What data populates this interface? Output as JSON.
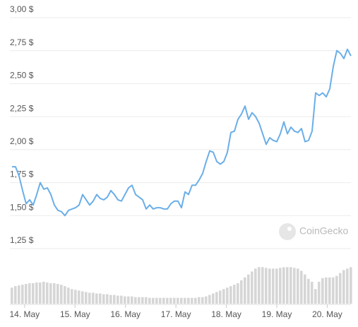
{
  "chart_data": {
    "type": "line",
    "color": "#6aaee8",
    "x": [
      13.75,
      13.82,
      13.89,
      13.96,
      14.03,
      14.1,
      14.17,
      14.24,
      14.31,
      14.38,
      14.45,
      14.52,
      14.59,
      14.66,
      14.73,
      14.8,
      14.87,
      14.94,
      15.01,
      15.08,
      15.15,
      15.22,
      15.29,
      15.36,
      15.43,
      15.5,
      15.57,
      15.64,
      15.71,
      15.78,
      15.85,
      15.92,
      15.99,
      16.06,
      16.13,
      16.2,
      16.27,
      16.34,
      16.41,
      16.48,
      16.55,
      16.62,
      16.69,
      16.76,
      16.83,
      16.9,
      16.97,
      17.04,
      17.11,
      17.18,
      17.25,
      17.32,
      17.39,
      17.46,
      17.53,
      17.6,
      17.67,
      17.74,
      17.81,
      17.88,
      17.95,
      18.02,
      18.09,
      18.16,
      18.23,
      18.3,
      18.37,
      18.44,
      18.51,
      18.58,
      18.65,
      18.72,
      18.79,
      18.86,
      18.93,
      19.0,
      19.07,
      19.14,
      19.21,
      19.28,
      19.35,
      19.42,
      19.49,
      19.56,
      19.63,
      19.7,
      19.77,
      19.84,
      19.91,
      19.98,
      20.05,
      20.12,
      20.19,
      20.26,
      20.33,
      20.4,
      20.47
    ],
    "values": [
      1.87,
      1.87,
      1.8,
      1.69,
      1.59,
      1.62,
      1.58,
      1.66,
      1.75,
      1.7,
      1.71,
      1.66,
      1.58,
      1.54,
      1.53,
      1.5,
      1.54,
      1.55,
      1.56,
      1.58,
      1.66,
      1.62,
      1.58,
      1.61,
      1.66,
      1.63,
      1.62,
      1.64,
      1.69,
      1.66,
      1.62,
      1.61,
      1.66,
      1.71,
      1.73,
      1.66,
      1.64,
      1.62,
      1.55,
      1.58,
      1.55,
      1.56,
      1.56,
      1.55,
      1.55,
      1.59,
      1.61,
      1.61,
      1.56,
      1.68,
      1.66,
      1.73,
      1.73,
      1.77,
      1.82,
      1.91,
      1.99,
      1.98,
      1.91,
      1.89,
      1.91,
      1.98,
      2.13,
      2.14,
      2.23,
      2.27,
      2.33,
      2.23,
      2.28,
      2.25,
      2.2,
      2.12,
      2.04,
      2.09,
      2.07,
      2.06,
      2.12,
      2.21,
      2.12,
      2.17,
      2.14,
      2.13,
      2.16,
      2.06,
      2.07,
      2.14,
      2.43,
      2.41,
      2.43,
      2.4,
      2.46,
      2.63,
      2.75,
      2.73,
      2.69,
      2.76,
      2.71
    ],
    "volume": {
      "color": "#d6d6d6",
      "ylim": [
        0,
        58
      ],
      "values": [
        22,
        24,
        25,
        26,
        27,
        28,
        28,
        29,
        29,
        30,
        29,
        28,
        28,
        27,
        26,
        24,
        22,
        20,
        19,
        18,
        17,
        16,
        15,
        15,
        14,
        14,
        13,
        13,
        12,
        12,
        11,
        11,
        10,
        10,
        10,
        9,
        9,
        9,
        9,
        8,
        8,
        8,
        8,
        8,
        8,
        8,
        8,
        8,
        8,
        8,
        8,
        8,
        8,
        9,
        9,
        10,
        12,
        14,
        16,
        18,
        20,
        22,
        24,
        26,
        28,
        32,
        36,
        40,
        44,
        48,
        50,
        50,
        49,
        48,
        48,
        48,
        49,
        50,
        50,
        50,
        49,
        48,
        45,
        40,
        34,
        30,
        20,
        30,
        35,
        36,
        36,
        36,
        38,
        42,
        46,
        48,
        50
      ]
    },
    "xlim": [
      13.75,
      20.47
    ],
    "xticks": [
      {
        "value": 14,
        "label": "14. May"
      },
      {
        "value": 15,
        "label": "15. May"
      },
      {
        "value": 16,
        "label": "16. May"
      },
      {
        "value": 17,
        "label": "17. May"
      },
      {
        "value": 18,
        "label": "18. May"
      },
      {
        "value": 19,
        "label": "19. May"
      },
      {
        "value": 20,
        "label": "20. May"
      }
    ],
    "ylim": [
      1.25,
      3.0
    ],
    "yticks": [
      {
        "value": 3.0,
        "label": "3,00 $"
      },
      {
        "value": 2.75,
        "label": "2,75 $"
      },
      {
        "value": 2.5,
        "label": "2,50 $"
      },
      {
        "value": 2.25,
        "label": "2,25 $"
      },
      {
        "value": 2.0,
        "label": "2,00 $"
      },
      {
        "value": 1.75,
        "label": "1,75 $"
      },
      {
        "value": 1.5,
        "label": "1,50 $"
      },
      {
        "value": 1.25,
        "label": "1,25 $"
      }
    ],
    "grid": true,
    "watermark": "CoinGecko"
  }
}
